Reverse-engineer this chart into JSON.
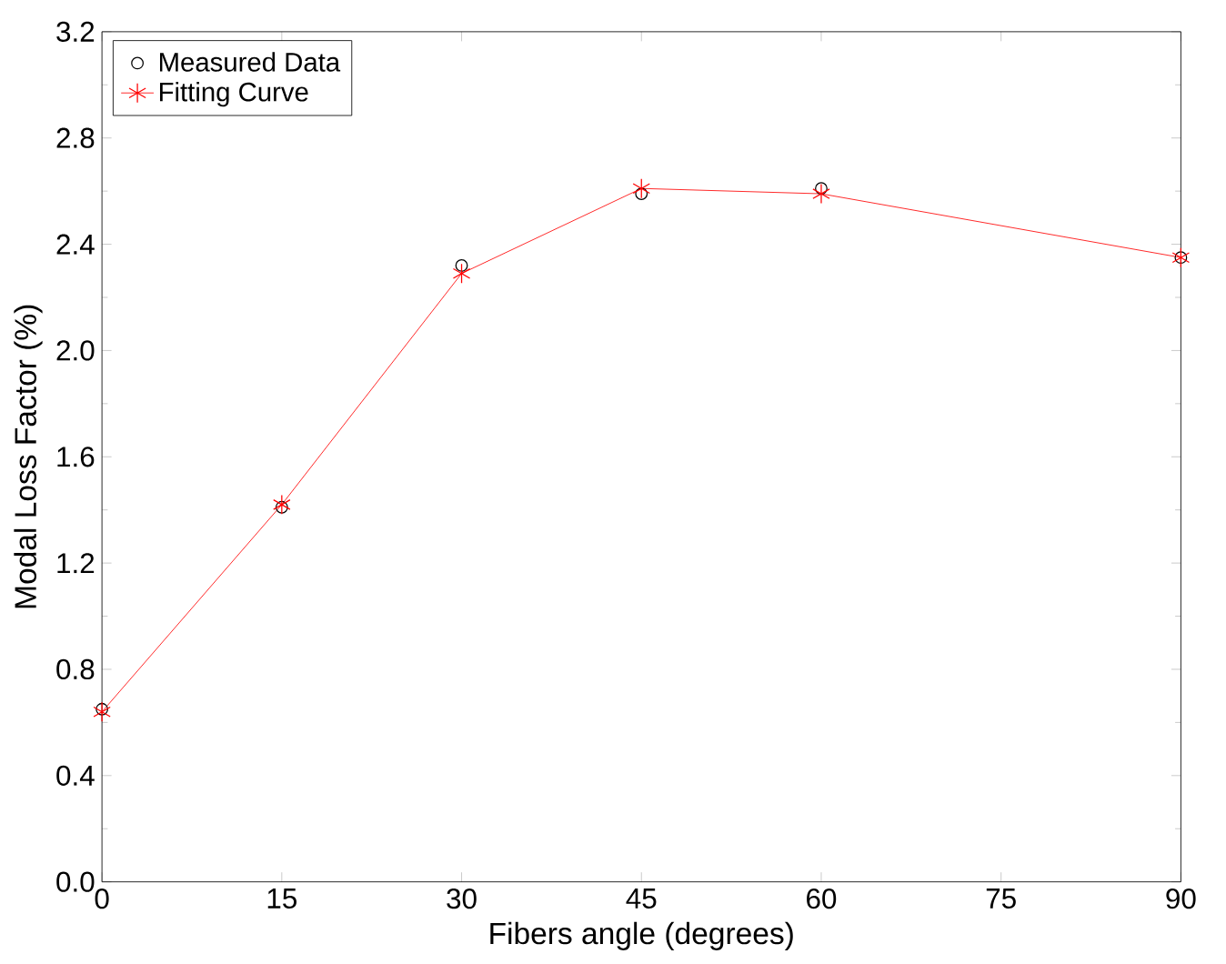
{
  "chart_data": {
    "type": "line",
    "xlabel": "Fibers angle (degrees)",
    "ylabel": "Modal Loss Factor (%)",
    "x": [
      0,
      15,
      30,
      45,
      60,
      90
    ],
    "series": [
      {
        "name": "Measured Data",
        "type": "scatter",
        "color": "#000000",
        "marker": "circle",
        "values": [
          0.65,
          1.41,
          2.32,
          2.59,
          2.61,
          2.35
        ]
      },
      {
        "name": "Fitting Curve",
        "color": "#ff0000",
        "marker": "cross",
        "values": [
          0.64,
          1.42,
          2.29,
          2.61,
          2.59,
          2.35
        ]
      }
    ],
    "xlim": [
      0,
      90
    ],
    "xticks": [
      0,
      15,
      30,
      45,
      60,
      75,
      90
    ],
    "ylim": [
      0,
      3.2
    ],
    "yticks": [
      {
        "value": 0,
        "label": "0.0"
      },
      0.4,
      0.8,
      1.2,
      1.6,
      {
        "value": 2,
        "label": "2.0"
      },
      2.4,
      2.8,
      3.2
    ],
    "legend": "top left",
    "grid": false
  }
}
